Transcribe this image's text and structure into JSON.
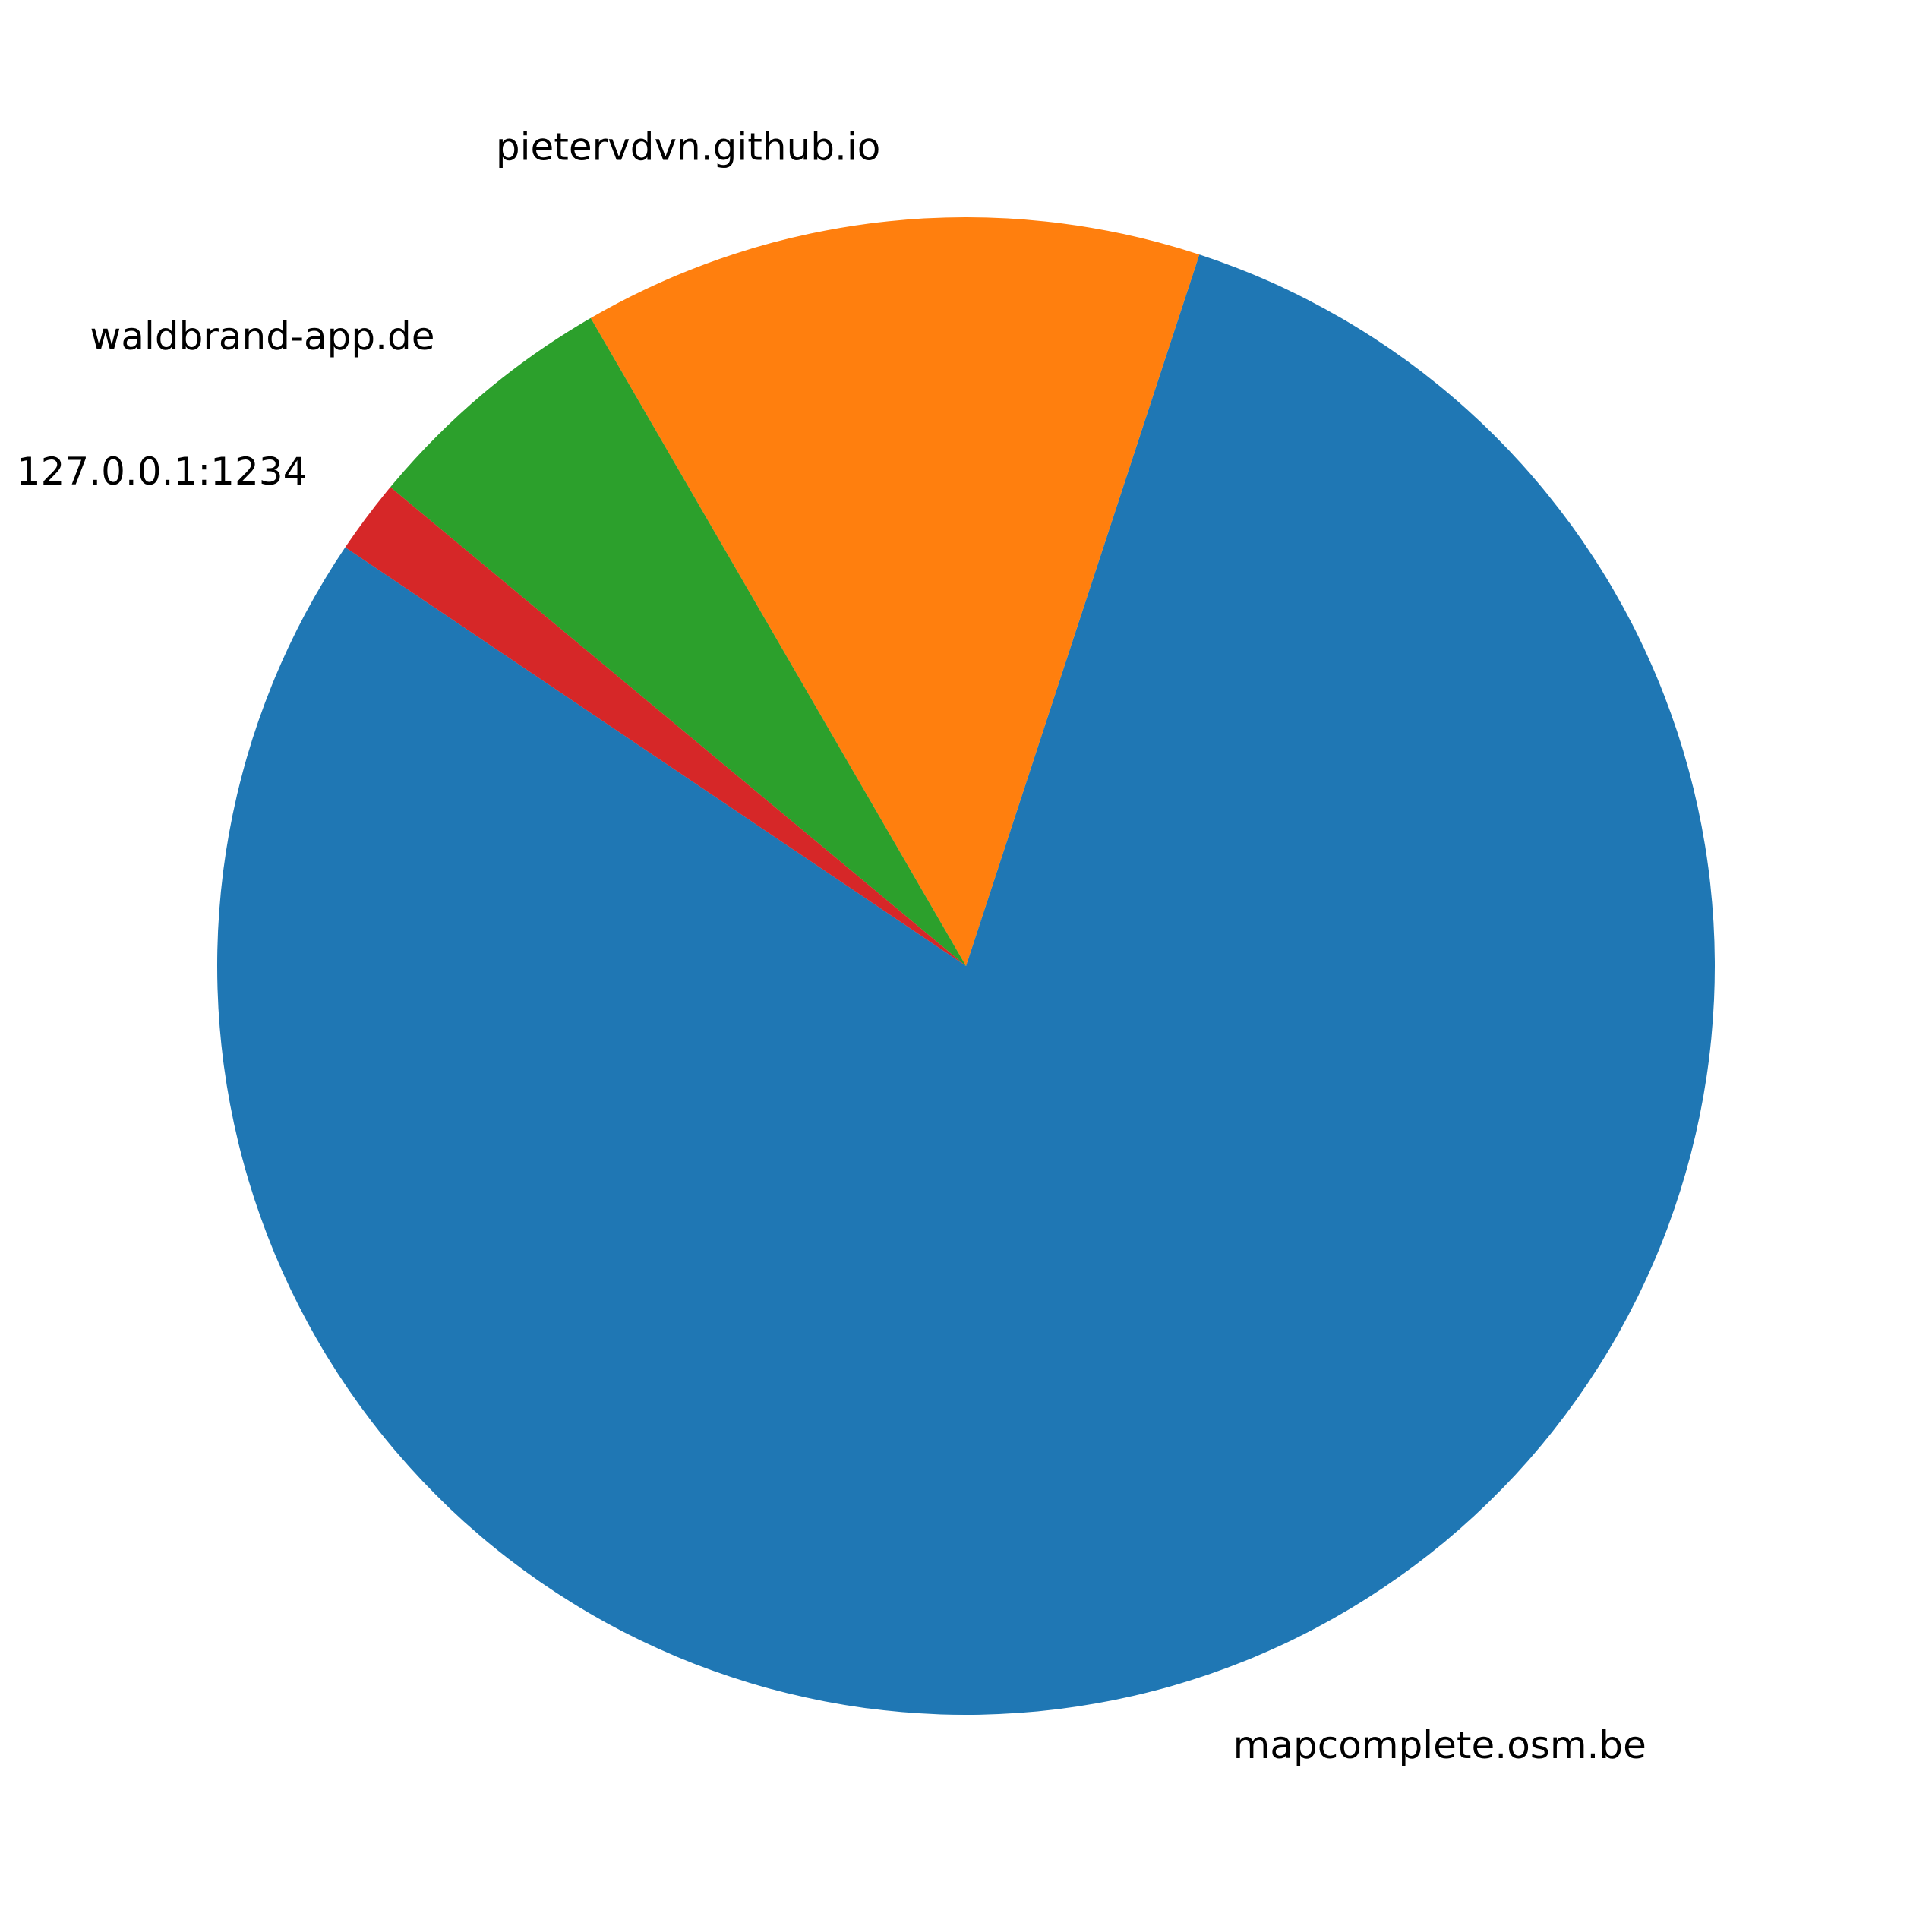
{
  "chart_data": {
    "type": "pie",
    "start_angle_deg": 146,
    "counterclockwise": true,
    "slices": [
      {
        "label": "mapcomplete.osm.be",
        "value": 0.794,
        "color": "#1f77b4"
      },
      {
        "label": "pietervdvn.github.io",
        "value": 0.134,
        "color": "#ff7f0e"
      },
      {
        "label": "waldbrand-app.de",
        "value": 0.056,
        "color": "#2ca02c"
      },
      {
        "label": "127.0.0.1:1234",
        "value": 0.016,
        "color": "#d62728"
      }
    ]
  }
}
